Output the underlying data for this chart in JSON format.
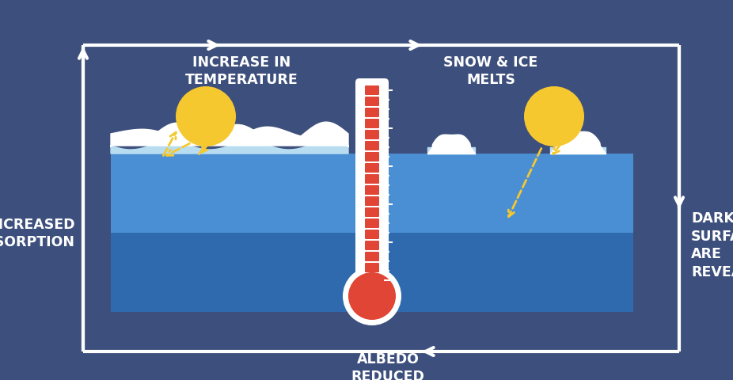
{
  "bg_color": "#3d4f7c",
  "water_color_top": "#4a8fd4",
  "water_color_bot": "#2e6aad",
  "ice_color": "#b8ddf0",
  "snow_color": "#ffffff",
  "thermo_fill": "#e04535",
  "thermo_white": "#ffffff",
  "sun_color": "#f5c830",
  "arrow_color": "#ffffff",
  "ray_color": "#f5c830",
  "text_color": "#ffffff",
  "label_increase_temp": "INCREASE IN\nTEMPERATURE",
  "label_snow_ice": "SNOW & ICE\nMELTS",
  "label_darker": "DARKER\nSURFACES\nARE\nREVEALED",
  "label_absorption": "INCREASED\nABSORPTION",
  "label_albedo": "ALBEDO\nREDUCED",
  "fig_width": 9.26,
  "fig_height": 4.81,
  "dpi": 100
}
